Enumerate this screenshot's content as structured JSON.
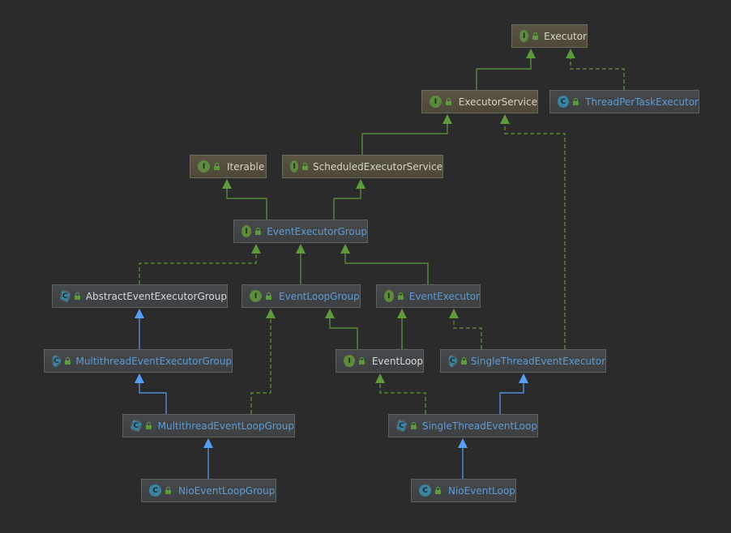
{
  "colors": {
    "background": "#2b2b2b",
    "interface_edge": "#5d9a3e",
    "class_edge": "#589df6"
  },
  "nodes": [
    {
      "id": "Executor",
      "label": "Executor",
      "kind": "interface",
      "style": "jdk"
    },
    {
      "id": "ExecutorService",
      "label": "ExecutorService",
      "kind": "interface",
      "style": "jdk"
    },
    {
      "id": "ThreadPerTaskExecutor",
      "label": "ThreadPerTaskExecutor",
      "kind": "class",
      "style": "netty"
    },
    {
      "id": "Iterable",
      "label": "Iterable",
      "kind": "interface",
      "style": "jdk"
    },
    {
      "id": "ScheduledExecutorService",
      "label": "ScheduledExecutorService",
      "kind": "interface",
      "style": "jdk"
    },
    {
      "id": "EventExecutorGroup",
      "label": "EventExecutorGroup",
      "kind": "interface",
      "style": "netty"
    },
    {
      "id": "AbstractEventExecutorGroup",
      "label": "AbstractEventExecutorGroup",
      "kind": "abstract",
      "style": "plain"
    },
    {
      "id": "EventLoopGroup",
      "label": "EventLoopGroup",
      "kind": "interface",
      "style": "netty"
    },
    {
      "id": "EventExecutor",
      "label": "EventExecutor",
      "kind": "interface",
      "style": "netty"
    },
    {
      "id": "MultithreadEventExecutorGroup",
      "label": "MultithreadEventExecutorGroup",
      "kind": "abstract",
      "style": "netty"
    },
    {
      "id": "EventLoop",
      "label": "EventLoop",
      "kind": "interface",
      "style": "plain"
    },
    {
      "id": "SingleThreadEventExecutor",
      "label": "SingleThreadEventExecutor",
      "kind": "abstract",
      "style": "netty"
    },
    {
      "id": "MultithreadEventLoopGroup",
      "label": "MultithreadEventLoopGroup",
      "kind": "abstract",
      "style": "netty"
    },
    {
      "id": "SingleThreadEventLoop",
      "label": "SingleThreadEventLoop",
      "kind": "abstract",
      "style": "netty"
    },
    {
      "id": "NioEventLoopGroup",
      "label": "NioEventLoopGroup",
      "kind": "class",
      "style": "netty"
    },
    {
      "id": "NioEventLoop",
      "label": "NioEventLoop",
      "kind": "class",
      "style": "netty"
    }
  ],
  "edges": [
    {
      "from": "ExecutorService",
      "to": "Executor",
      "type": "extends-interface"
    },
    {
      "from": "ThreadPerTaskExecutor",
      "to": "Executor",
      "type": "implements"
    },
    {
      "from": "ScheduledExecutorService",
      "to": "ExecutorService",
      "type": "extends-interface"
    },
    {
      "from": "SingleThreadEventExecutor",
      "to": "ExecutorService",
      "type": "implements"
    },
    {
      "from": "EventExecutorGroup",
      "to": "Iterable",
      "type": "extends-interface"
    },
    {
      "from": "EventExecutorGroup",
      "to": "ScheduledExecutorService",
      "type": "extends-interface"
    },
    {
      "from": "AbstractEventExecutorGroup",
      "to": "EventExecutorGroup",
      "type": "implements"
    },
    {
      "from": "EventLoopGroup",
      "to": "EventExecutorGroup",
      "type": "extends-interface"
    },
    {
      "from": "EventExecutor",
      "to": "EventExecutorGroup",
      "type": "extends-interface"
    },
    {
      "from": "MultithreadEventExecutorGroup",
      "to": "AbstractEventExecutorGroup",
      "type": "extends-class"
    },
    {
      "from": "EventLoop",
      "to": "EventLoopGroup",
      "type": "extends-interface"
    },
    {
      "from": "EventLoop",
      "to": "EventExecutor",
      "type": "extends-interface"
    },
    {
      "from": "SingleThreadEventExecutor",
      "to": "EventExecutor",
      "type": "implements"
    },
    {
      "from": "MultithreadEventLoopGroup",
      "to": "MultithreadEventExecutorGroup",
      "type": "extends-class"
    },
    {
      "from": "MultithreadEventLoopGroup",
      "to": "EventLoopGroup",
      "type": "implements"
    },
    {
      "from": "SingleThreadEventLoop",
      "to": "EventLoop",
      "type": "implements"
    },
    {
      "from": "SingleThreadEventLoop",
      "to": "SingleThreadEventExecutor",
      "type": "extends-class"
    },
    {
      "from": "NioEventLoopGroup",
      "to": "MultithreadEventLoopGroup",
      "type": "extends-class"
    },
    {
      "from": "NioEventLoop",
      "to": "SingleThreadEventLoop",
      "type": "extends-class"
    }
  ]
}
